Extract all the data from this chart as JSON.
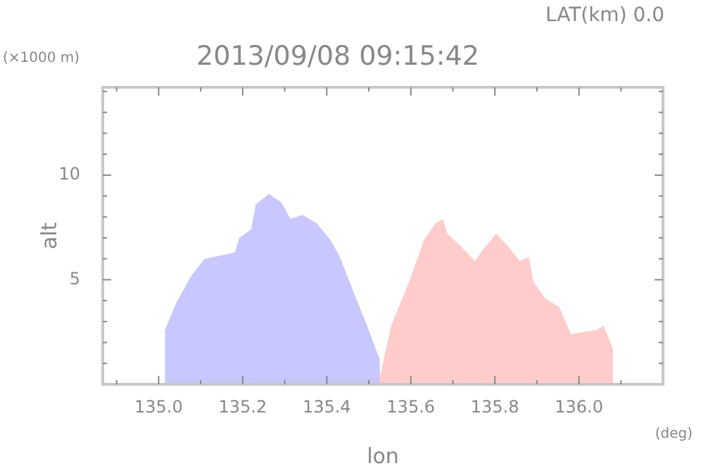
{
  "chart_data": {
    "type": "area",
    "title": "2013/09/08 09:15:42",
    "subtitle": "LAT(km) 0.0",
    "xlabel": "lon",
    "ylabel": "alt",
    "annotations": [
      "(×1000 m)",
      "(deg)"
    ],
    "xlim": [
      134.867,
      136.2
    ],
    "ylim": [
      0,
      14.2
    ],
    "xticks": [
      {
        "value": 134.9,
        "label": null
      },
      {
        "value": 135.0,
        "label": "135.0"
      },
      {
        "value": 135.1,
        "label": null
      },
      {
        "value": 135.2,
        "label": "135.2"
      },
      {
        "value": 135.3,
        "label": null
      },
      {
        "value": 135.4,
        "label": "135.4"
      },
      {
        "value": 135.5,
        "label": null
      },
      {
        "value": 135.6,
        "label": "135.6"
      },
      {
        "value": 135.7,
        "label": null
      },
      {
        "value": 135.8,
        "label": "135.8"
      },
      {
        "value": 135.9,
        "label": null
      },
      {
        "value": 136.0,
        "label": "136.0"
      },
      {
        "value": 136.1,
        "label": null
      }
    ],
    "yticks": [
      {
        "value": 1,
        "label": null
      },
      {
        "value": 2,
        "label": null
      },
      {
        "value": 3,
        "label": null
      },
      {
        "value": 4,
        "label": null
      },
      5,
      {
        "value": 6,
        "label": null
      },
      {
        "value": 7,
        "label": null
      },
      {
        "value": 8,
        "label": null
      },
      {
        "value": 9,
        "label": null
      },
      10,
      {
        "value": 11,
        "label": null
      },
      {
        "value": 12,
        "label": null
      },
      {
        "value": 13,
        "label": null
      },
      {
        "value": 14,
        "label": null
      }
    ],
    "grid": false,
    "series": [
      {
        "color": "#c8c8ff",
        "x": [
          135.015,
          135.015,
          135.042,
          135.078,
          135.109,
          135.181,
          135.192,
          135.22,
          135.231,
          135.262,
          135.292,
          135.314,
          135.342,
          135.376,
          135.409,
          135.431,
          135.464,
          135.492,
          135.526,
          135.527
        ],
        "values": [
          0,
          2.6,
          3.9,
          5.2,
          6.0,
          6.3,
          7.0,
          7.4,
          8.6,
          9.1,
          8.7,
          7.9,
          8.1,
          7.7,
          6.9,
          6.1,
          4.4,
          3.0,
          1.2,
          0
        ]
      },
      {
        "color": "#ffcccc",
        "x": [
          135.526,
          135.526,
          135.553,
          135.598,
          135.631,
          135.659,
          135.676,
          135.687,
          135.714,
          135.753,
          135.77,
          135.803,
          135.831,
          135.859,
          135.881,
          135.892,
          135.92,
          135.953,
          135.981,
          136.042,
          136.059,
          136.081,
          136.081
        ],
        "values": [
          0,
          0.3,
          2.8,
          5.0,
          6.9,
          7.7,
          7.9,
          7.2,
          6.7,
          5.9,
          6.4,
          7.2,
          6.6,
          5.9,
          6.1,
          4.9,
          4.1,
          3.7,
          2.4,
          2.6,
          2.8,
          1.7,
          0
        ]
      }
    ]
  }
}
